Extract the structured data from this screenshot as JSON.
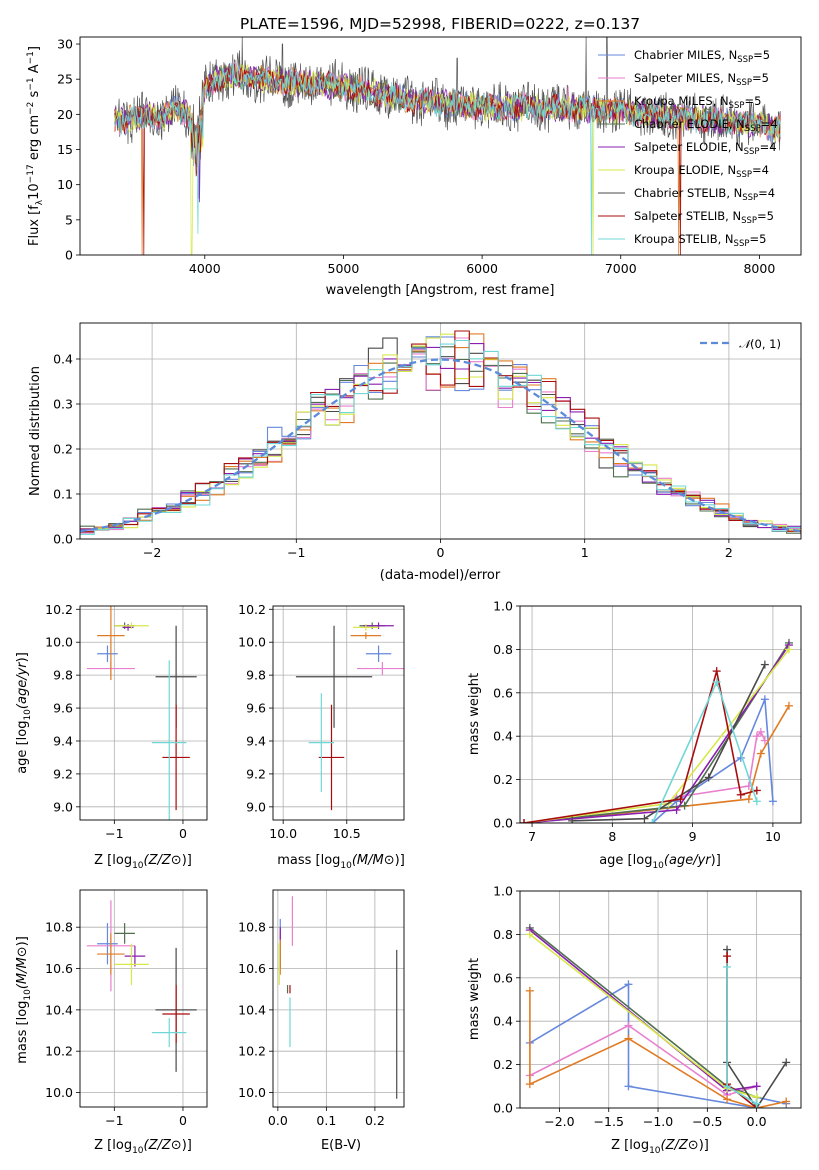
{
  "title": "PLATE=1596, MJD=52998, FIBERID=0222, z=0.137",
  "model_colors": [
    "#6688dd",
    "#e87fcf",
    "#e07b25",
    "#4f6f4f",
    "#8a1fb0",
    "#d7e84a",
    "#4a4a4a",
    "#a80d0d",
    "#6fd8d6"
  ],
  "legend": {
    "entries": [
      {
        "label": "Chabrier MILES, N",
        "sub": "SSP",
        "suffix": "=5"
      },
      {
        "label": "Salpeter MILES, N",
        "sub": "SSP",
        "suffix": "=5"
      },
      {
        "label": "Kroupa MILES, N",
        "sub": "SSP",
        "suffix": "=5"
      },
      {
        "label": "Chabrier ELODIE, N",
        "sub": "SSP",
        "suffix": "=4"
      },
      {
        "label": "Salpeter ELODIE, N",
        "sub": "SSP",
        "suffix": "=4"
      },
      {
        "label": "Kroupa ELODIE, N",
        "sub": "SSP",
        "suffix": "=4"
      },
      {
        "label": "Chabrier STELIB, N",
        "sub": "SSP",
        "suffix": "=4"
      },
      {
        "label": "Salpeter STELIB, N",
        "sub": "SSP",
        "suffix": "=5"
      },
      {
        "label": "Kroupa STELIB, N",
        "sub": "SSP",
        "suffix": "=5"
      }
    ]
  },
  "chart_data": [
    {
      "type": "line",
      "xlabel": "wavelength [Angstrom, rest frame]",
      "ylabel": "Flux [f_λ 10^-17 erg cm^-2 s^-1 A^-1]",
      "ylabel_main": "Flux [f",
      "ylabel_rest": "10",
      "ylabel_tail": " erg cm",
      "ylabel_tail2": " s",
      "ylabel_tail3": " A",
      "ylabel_end": "]",
      "xlim": [
        3100,
        8300
      ],
      "ylim": [
        0,
        31
      ],
      "xticks": [
        4000,
        5000,
        6000,
        7000,
        8000
      ],
      "yticks": [
        0,
        5,
        10,
        15,
        20,
        25,
        30
      ],
      "flux_profile": {
        "x": [
          3350,
          3400,
          3500,
          3600,
          3700,
          3800,
          3900,
          3950,
          4000,
          4100,
          4200,
          4400,
          4700,
          5000,
          5500,
          6000,
          6500,
          7000,
          7500,
          8000,
          8150
        ],
        "y": [
          19.5,
          19.0,
          19.5,
          20.0,
          19.5,
          21.0,
          19.5,
          18.0,
          24.0,
          25.0,
          25.5,
          25.0,
          24.5,
          24.0,
          22.0,
          21.0,
          21.0,
          20.5,
          19.5,
          18.5,
          18.0
        ]
      }
    },
    {
      "type": "bar",
      "xlabel": "(data-model)/error",
      "ylabel": "Normed distribution",
      "xlim": [
        -2.5,
        2.5
      ],
      "ylim": [
        0,
        0.48
      ],
      "xticks": [
        -2,
        -1,
        0,
        1,
        2
      ],
      "yticks": [
        0.0,
        0.1,
        0.2,
        0.3,
        0.4
      ],
      "legend_label": "(0, 1)",
      "legend_symbol": "𝒩",
      "bin_width": 0.1,
      "gaussian": {
        "mean": 0,
        "sigma": 1
      }
    },
    {
      "type": "scatter",
      "xlabel": "Z [log10(Z/Z⊙)]",
      "ylabel": "age [log10(age/yr)]",
      "xlim": [
        -1.5,
        0.35
      ],
      "ylim": [
        8.92,
        10.22
      ],
      "xticks": [
        -1,
        0
      ],
      "yticks": [
        9.0,
        9.2,
        9.4,
        9.6,
        9.8,
        10.0,
        10.2
      ],
      "points": [
        {
          "x": -1.1,
          "y": 9.93,
          "xerr": 0.15,
          "yerr": 0.05
        },
        {
          "x": -1.05,
          "y": 9.84,
          "xerr": 0.35,
          "yerr": 0.04
        },
        {
          "x": -1.05,
          "y": 10.04,
          "xerr": 0.2,
          "yerr": 0.27
        },
        {
          "x": -0.85,
          "y": 10.1,
          "xerr": 0.15,
          "yerr": 0.02
        },
        {
          "x": -0.8,
          "y": 10.09,
          "xerr": 0.08,
          "yerr": 0.02
        },
        {
          "x": -0.75,
          "y": 10.1,
          "xerr": 0.25,
          "yerr": 0.02
        },
        {
          "x": -0.1,
          "y": 9.79,
          "xerr": 0.3,
          "yerr": 0.31
        },
        {
          "x": -0.1,
          "y": 9.3,
          "xerr": 0.2,
          "yerr": 0.32
        },
        {
          "x": -0.2,
          "y": 9.39,
          "xerr": 0.25,
          "yerr": 0.5
        }
      ]
    },
    {
      "type": "scatter",
      "xlabel": "mass [log10(M/M⊙)]",
      "ylabel": "",
      "xlim": [
        9.92,
        10.95
      ],
      "ylim": [
        8.92,
        10.22
      ],
      "xticks": [
        10.0,
        10.5
      ],
      "yticks": [
        9.0,
        9.2,
        9.4,
        9.6,
        9.8,
        10.0,
        10.2
      ],
      "points": [
        {
          "x": 10.75,
          "y": 9.93,
          "xerr": 0.1,
          "yerr": 0.05
        },
        {
          "x": 10.78,
          "y": 9.84,
          "xerr": 0.2,
          "yerr": 0.04
        },
        {
          "x": 10.65,
          "y": 10.04,
          "xerr": 0.12,
          "yerr": 0.02
        },
        {
          "x": 10.7,
          "y": 10.1,
          "xerr": 0.1,
          "yerr": 0.02
        },
        {
          "x": 10.75,
          "y": 10.1,
          "xerr": 0.12,
          "yerr": 0.02
        },
        {
          "x": 10.65,
          "y": 10.09,
          "xerr": 0.1,
          "yerr": 0.02
        },
        {
          "x": 10.4,
          "y": 9.79,
          "xerr": 0.3,
          "yerr": 0.31
        },
        {
          "x": 10.38,
          "y": 9.3,
          "xerr": 0.1,
          "yerr": 0.32
        },
        {
          "x": 10.3,
          "y": 9.39,
          "xerr": 0.1,
          "yerr": 0.3
        }
      ]
    },
    {
      "type": "line",
      "xlabel": "age [log10(age/yr)]",
      "ylabel": "mass weight",
      "xlim": [
        6.85,
        10.35
      ],
      "ylim": [
        0,
        1.0
      ],
      "xticks": [
        7,
        8,
        9,
        10
      ],
      "yticks": [
        0.0,
        0.2,
        0.4,
        0.6,
        0.8,
        1.0
      ],
      "series": [
        {
          "x": [
            8.5,
            8.8,
            9.6,
            9.9,
            10.0
          ],
          "y": [
            0.0,
            0.1,
            0.3,
            0.57,
            0.1
          ]
        },
        {
          "x": [
            8.8,
            9.7,
            9.8,
            9.85,
            9.9
          ],
          "y": [
            0.12,
            0.17,
            0.4,
            0.42,
            0.38
          ]
        },
        {
          "x": [
            7.5,
            9.7,
            9.85,
            10.2
          ],
          "y": [
            0.02,
            0.11,
            0.32,
            0.54
          ]
        },
        {
          "x": [
            6.9,
            8.9,
            10.2
          ],
          "y": [
            0.0,
            0.08,
            0.83
          ]
        },
        {
          "x": [
            6.9,
            8.8,
            10.2
          ],
          "y": [
            0.0,
            0.06,
            0.82
          ]
        },
        {
          "x": [
            6.9,
            8.7,
            10.2
          ],
          "y": [
            0.0,
            0.09,
            0.8
          ]
        },
        {
          "x": [
            7.5,
            8.4,
            9.2,
            9.9
          ],
          "y": [
            0.01,
            0.02,
            0.21,
            0.73
          ]
        },
        {
          "x": [
            6.9,
            8.85,
            9.3,
            9.6,
            9.8
          ],
          "y": [
            0.0,
            0.11,
            0.7,
            0.13,
            0.15
          ]
        },
        {
          "x": [
            8.5,
            9.3,
            9.8
          ],
          "y": [
            0.0,
            0.65,
            0.1
          ]
        }
      ]
    },
    {
      "type": "scatter",
      "xlabel": "Z [log10(Z/Z⊙)]",
      "ylabel": "mass [log10(M/M⊙)]",
      "xlim": [
        -1.5,
        0.35
      ],
      "ylim": [
        9.93,
        10.98
      ],
      "xticks": [
        -1,
        0
      ],
      "yticks": [
        10.0,
        10.2,
        10.4,
        10.6,
        10.8
      ],
      "points": [
        {
          "x": -1.1,
          "y": 10.72,
          "xerr": 0.15,
          "yerr": 0.1
        },
        {
          "x": -1.05,
          "y": 10.71,
          "xerr": 0.35,
          "yerr": 0.22
        },
        {
          "x": -1.05,
          "y": 10.67,
          "xerr": 0.2,
          "yerr": 0.1
        },
        {
          "x": -0.85,
          "y": 10.77,
          "xerr": 0.15,
          "yerr": 0.05
        },
        {
          "x": -0.7,
          "y": 10.66,
          "xerr": 0.15,
          "yerr": 0.05
        },
        {
          "x": -0.75,
          "y": 10.62,
          "xerr": 0.25,
          "yerr": 0.1
        },
        {
          "x": -0.1,
          "y": 10.4,
          "xerr": 0.3,
          "yerr": 0.3
        },
        {
          "x": -0.1,
          "y": 10.38,
          "xerr": 0.2,
          "yerr": 0.14
        },
        {
          "x": -0.2,
          "y": 10.29,
          "xerr": 0.25,
          "yerr": 0.07
        }
      ]
    },
    {
      "type": "scatter",
      "xlabel": "E(B-V)",
      "ylabel": "",
      "xlim": [
        -0.01,
        0.26
      ],
      "ylim": [
        9.93,
        10.98
      ],
      "xticks": [
        0.0,
        0.1,
        0.2
      ],
      "yticks": [
        10.0,
        10.2,
        10.4,
        10.6,
        10.8
      ],
      "points": [
        {
          "x": 0.005,
          "y": 10.72,
          "yerr": 0.12
        },
        {
          "x": 0.03,
          "y": 10.83,
          "yerr": 0.12
        },
        {
          "x": 0.005,
          "y": 10.67,
          "yerr": 0.1
        },
        {
          "x": 0.02,
          "y": 10.5,
          "yerr": 0.02
        },
        {
          "x": 0.005,
          "y": 10.77,
          "yerr": 0.03
        },
        {
          "x": 0.003,
          "y": 10.62,
          "yerr": 0.1
        },
        {
          "x": 0.245,
          "y": 10.33,
          "yerr": 0.36
        },
        {
          "x": 0.025,
          "y": 10.5,
          "yerr": 0.02
        },
        {
          "x": 0.025,
          "y": 10.34,
          "yerr": 0.12
        }
      ]
    },
    {
      "type": "line",
      "xlabel": "Z [log10(Z/Z⊙)]",
      "ylabel": "mass weight",
      "xlim": [
        -2.4,
        0.45
      ],
      "ylim": [
        0,
        1.0
      ],
      "xticks": [
        -2.0,
        -1.5,
        -1.0,
        -0.5,
        0.0
      ],
      "yticks": [
        0.0,
        0.2,
        0.4,
        0.6,
        0.8,
        1.0
      ],
      "series": [
        {
          "x": [
            -2.3,
            -1.3,
            -1.3,
            0.0,
            0.0,
            0.3
          ],
          "y": [
            0.3,
            0.57,
            0.1,
            0.0,
            0.05,
            0.02
          ]
        },
        {
          "x": [
            -2.3,
            -1.3,
            -0.3,
            0.0
          ],
          "y": [
            0.15,
            0.38,
            0.06,
            0.1
          ]
        },
        {
          "x": [
            -2.3,
            -2.3,
            -1.3,
            -0.3,
            0.0,
            0.3
          ],
          "y": [
            0.54,
            0.11,
            0.32,
            0.04,
            0.0,
            0.03
          ]
        },
        {
          "x": [
            -2.3,
            -0.3,
            0.0
          ],
          "y": [
            0.83,
            0.1,
            0.05
          ]
        },
        {
          "x": [
            -2.3,
            -0.3,
            0.0
          ],
          "y": [
            0.82,
            0.08,
            0.1
          ]
        },
        {
          "x": [
            -2.3,
            -0.3,
            0.0
          ],
          "y": [
            0.8,
            0.09,
            0.05
          ]
        },
        {
          "x": [
            -0.3,
            -0.3,
            0.0,
            0.3
          ],
          "y": [
            0.73,
            0.21,
            0.0,
            0.21
          ]
        },
        {
          "x": [
            -0.3,
            -0.3,
            0.0
          ],
          "y": [
            0.7,
            0.11,
            0.0
          ]
        },
        {
          "x": [
            -0.3,
            -0.3,
            0.0,
            0.0
          ],
          "y": [
            0.65,
            0.1,
            0.02,
            0.0
          ]
        }
      ]
    }
  ]
}
